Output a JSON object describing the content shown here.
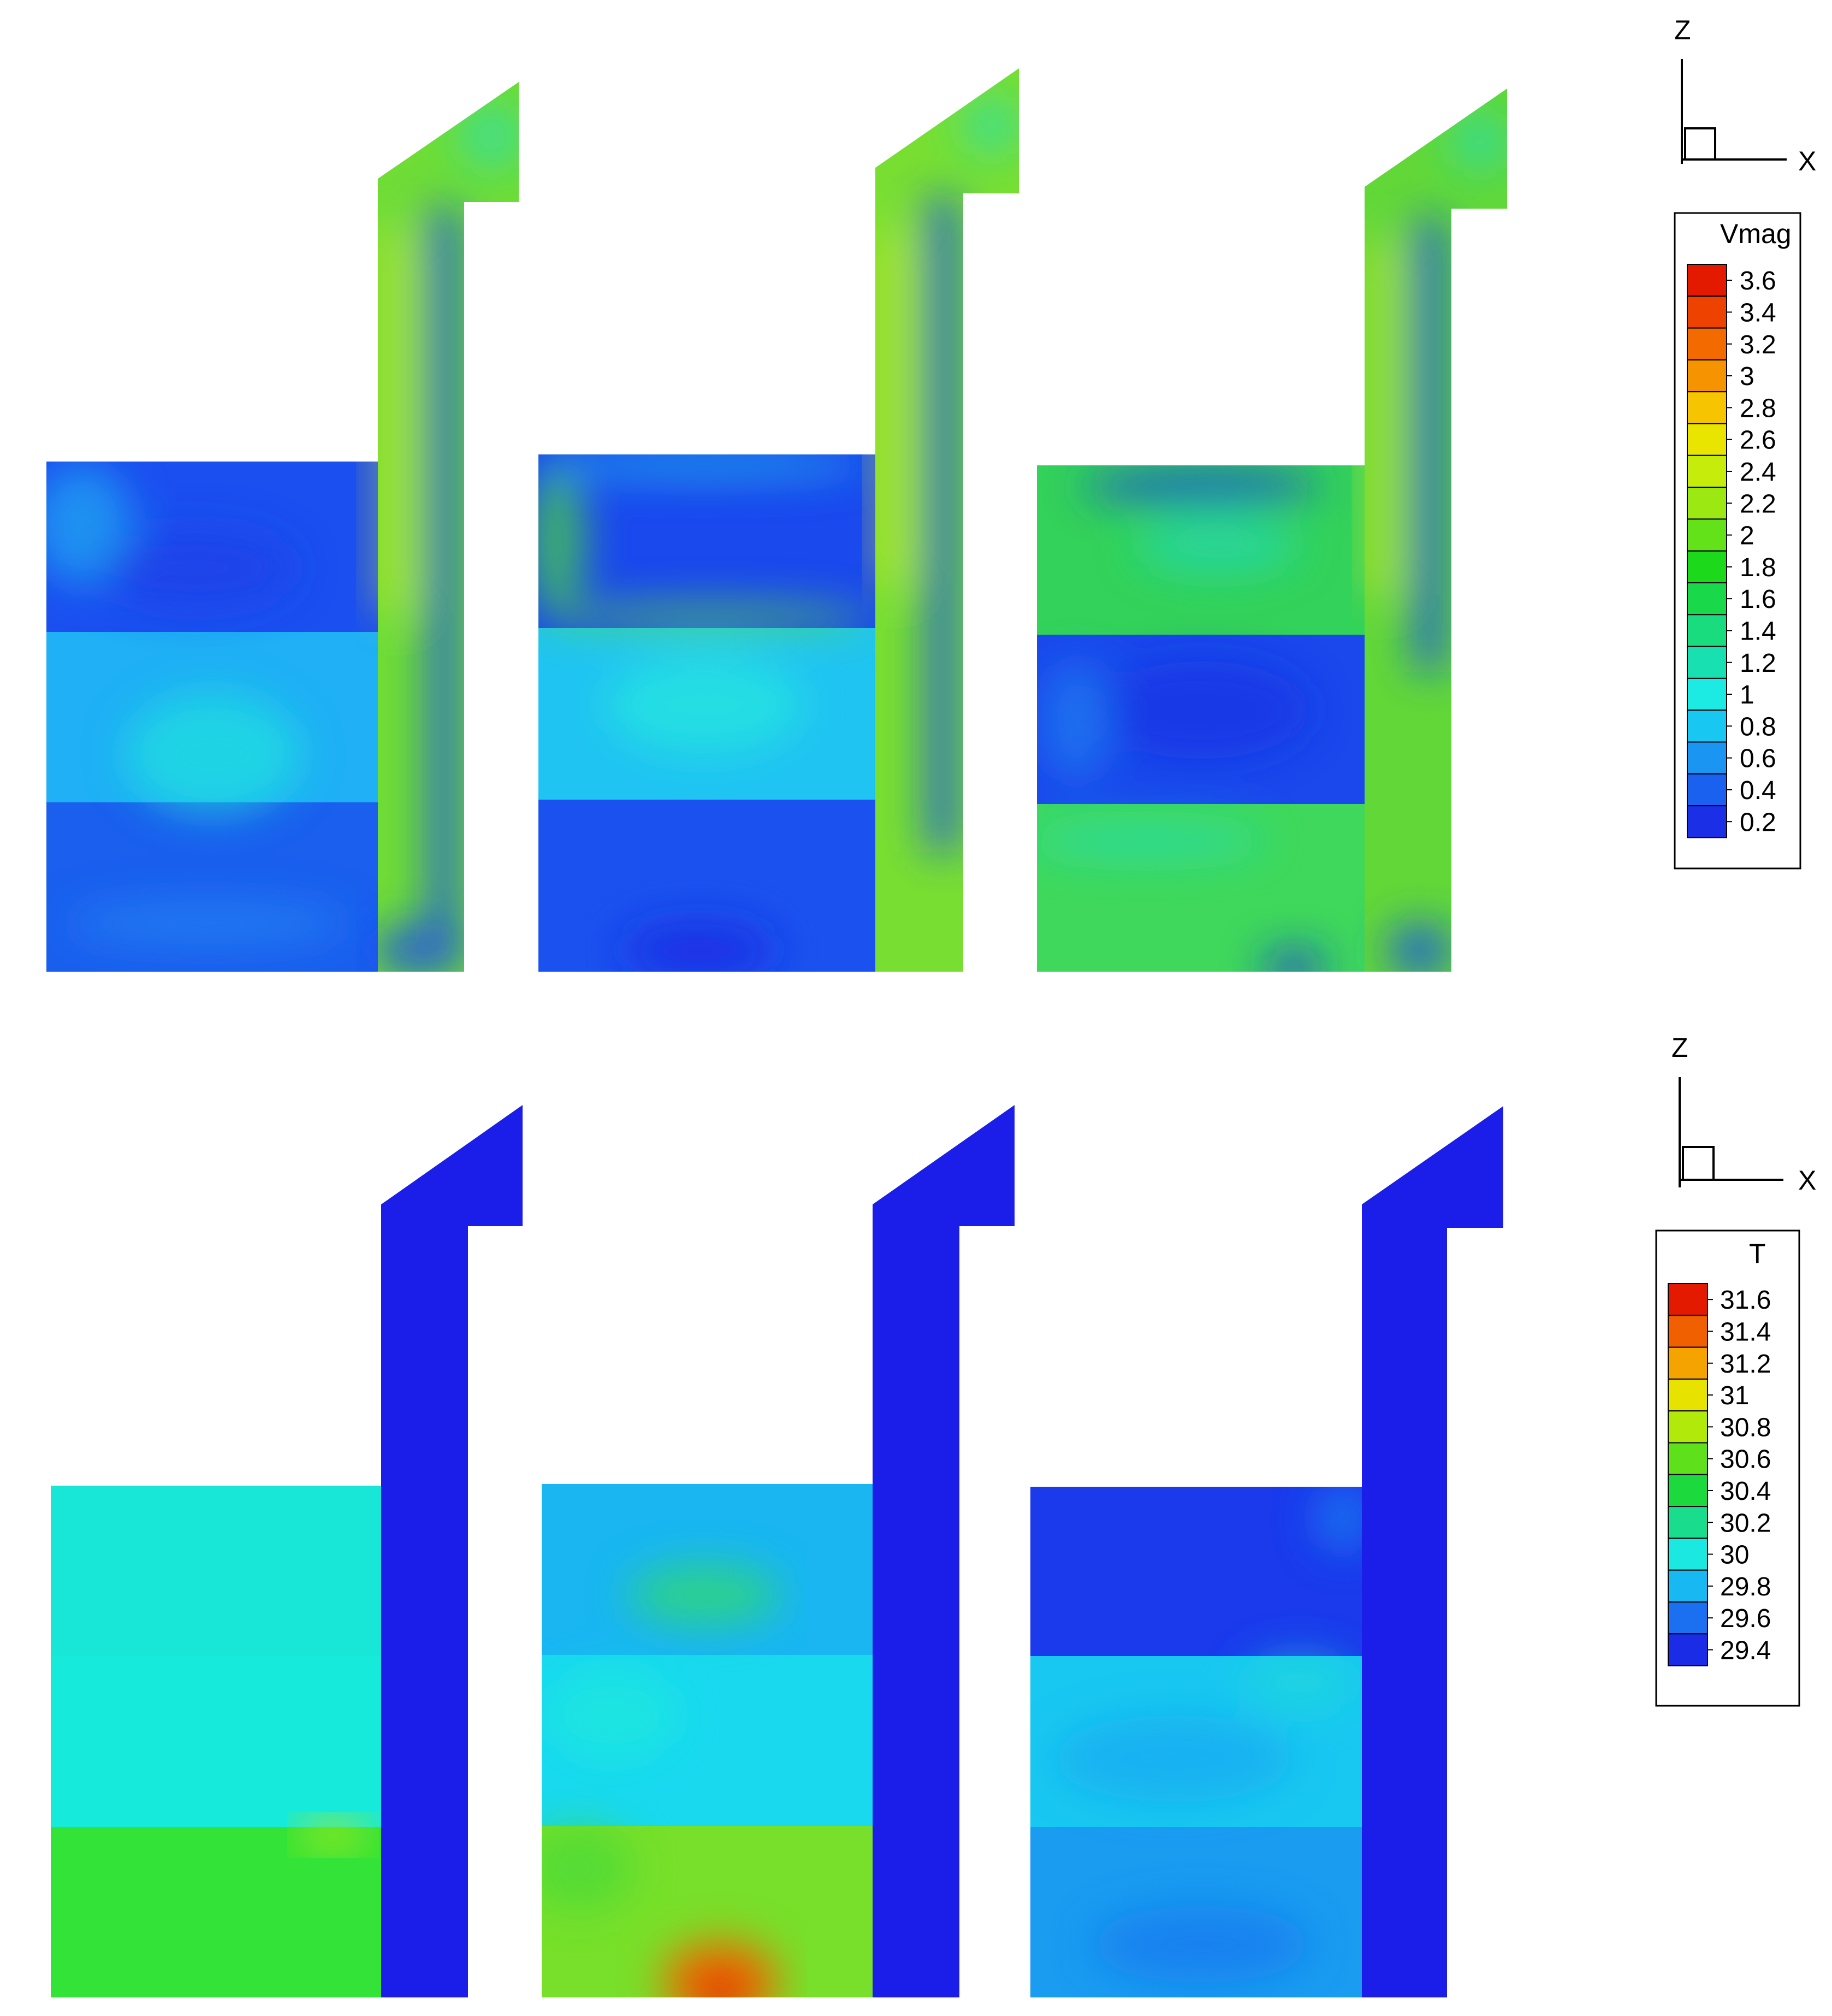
{
  "rows": [
    {
      "id": "vmag-row",
      "panels": [
        {
          "id": "case-1",
          "rooms": [
            "#1b4ff0",
            "#1fb0f5",
            "#1a5fee"
          ],
          "duct": "#6fdd36"
        },
        {
          "id": "case-2",
          "rooms": [
            "#1a49ee",
            "#20c4f2",
            "#1b52ef"
          ],
          "duct": "#78df32"
        },
        {
          "id": "case-3",
          "rooms": [
            "#33d25a",
            "#1a48ec",
            "#3fd85c"
          ],
          "duct": "#62d838"
        }
      ],
      "axes": {
        "z_label": "Z",
        "x_label": "X"
      },
      "legend": {
        "title": "Vmag",
        "ticks": [
          "3.6",
          "3.4",
          "3.2",
          "3",
          "2.8",
          "2.6",
          "2.4",
          "2.2",
          "2",
          "1.8",
          "1.6",
          "1.4",
          "1.2",
          "1",
          "0.8",
          "0.6",
          "0.4",
          "0.2"
        ],
        "colors": [
          "#e41a00",
          "#ee4200",
          "#f26a00",
          "#f59300",
          "#f6c400",
          "#e9e400",
          "#c5ec0a",
          "#9ce813",
          "#63e21a",
          "#1cd91c",
          "#19d84a",
          "#19dc7e",
          "#19e0b1",
          "#1bebe3",
          "#18c8f3",
          "#1a95f2",
          "#1a61ef",
          "#1a2fe6"
        ]
      }
    },
    {
      "id": "temperature-row",
      "panels": [
        {
          "id": "case-1",
          "rooms": [
            "#18e7d8",
            "#15eadb",
            "#33e338"
          ],
          "duct": "#1a1ee8"
        },
        {
          "id": "case-2",
          "rooms": [
            "#19b6f2",
            "#19d9ef",
            "#78e02a"
          ],
          "duct": "#1a1ee8"
        },
        {
          "id": "case-3",
          "rooms": [
            "#1a3aec",
            "#19c8f1",
            "#1a9cf1"
          ],
          "duct": "#1a1ee8"
        }
      ],
      "axes": {
        "z_label": "Z",
        "x_label": "X"
      },
      "legend": {
        "title": "T",
        "ticks": [
          "31.6",
          "31.4",
          "31.2",
          "31",
          "30.8",
          "30.6",
          "30.4",
          "30.2",
          "30",
          "29.8",
          "29.6",
          "29.4"
        ],
        "colors": [
          "#e41a00",
          "#f06000",
          "#f5a300",
          "#e8e200",
          "#b0e90a",
          "#5ee01a",
          "#1cd93e",
          "#19dc8c",
          "#1be8e0",
          "#18b8f3",
          "#1a70f0",
          "#1a2ce6"
        ]
      }
    }
  ]
}
